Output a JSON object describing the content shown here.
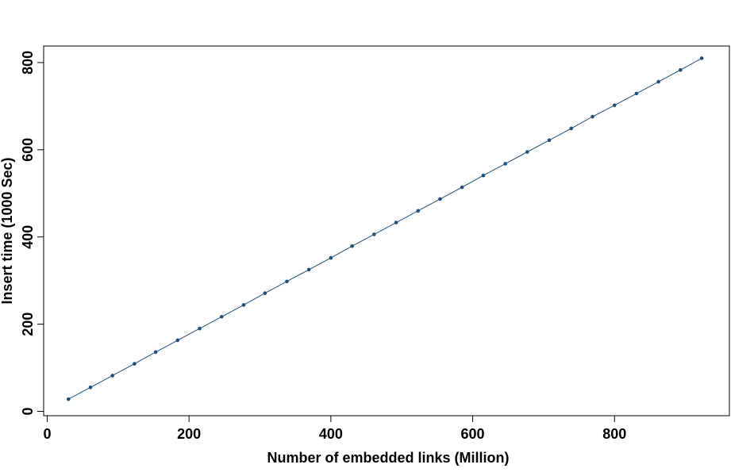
{
  "chart_data": {
    "type": "line",
    "title": "",
    "xlabel": "Number of embedded links (Million)",
    "ylabel": "Insert time (1000 Sec)",
    "xlim": [
      -5,
      962
    ],
    "ylim": [
      -10,
      838
    ],
    "xticks": [
      0,
      200,
      400,
      600,
      800
    ],
    "yticks": [
      0,
      200,
      400,
      600,
      800
    ],
    "grid": false,
    "legend": "none",
    "series": [
      {
        "color": "#1f4e79",
        "marker": "dot",
        "x": [
          30,
          61,
          92,
          123,
          153,
          184,
          215,
          246,
          277,
          307,
          338,
          369,
          400,
          430,
          461,
          492,
          523,
          554,
          585,
          615,
          646,
          677,
          708,
          739,
          769,
          800,
          831,
          862,
          893,
          923
        ],
        "y": [
          28,
          55,
          82,
          109,
          136,
          163,
          190,
          217,
          244,
          271,
          298,
          325,
          352,
          379,
          406,
          433,
          460,
          487,
          514,
          541,
          568,
          595,
          622,
          649,
          676,
          702,
          729,
          756,
          783,
          810
        ]
      }
    ]
  }
}
